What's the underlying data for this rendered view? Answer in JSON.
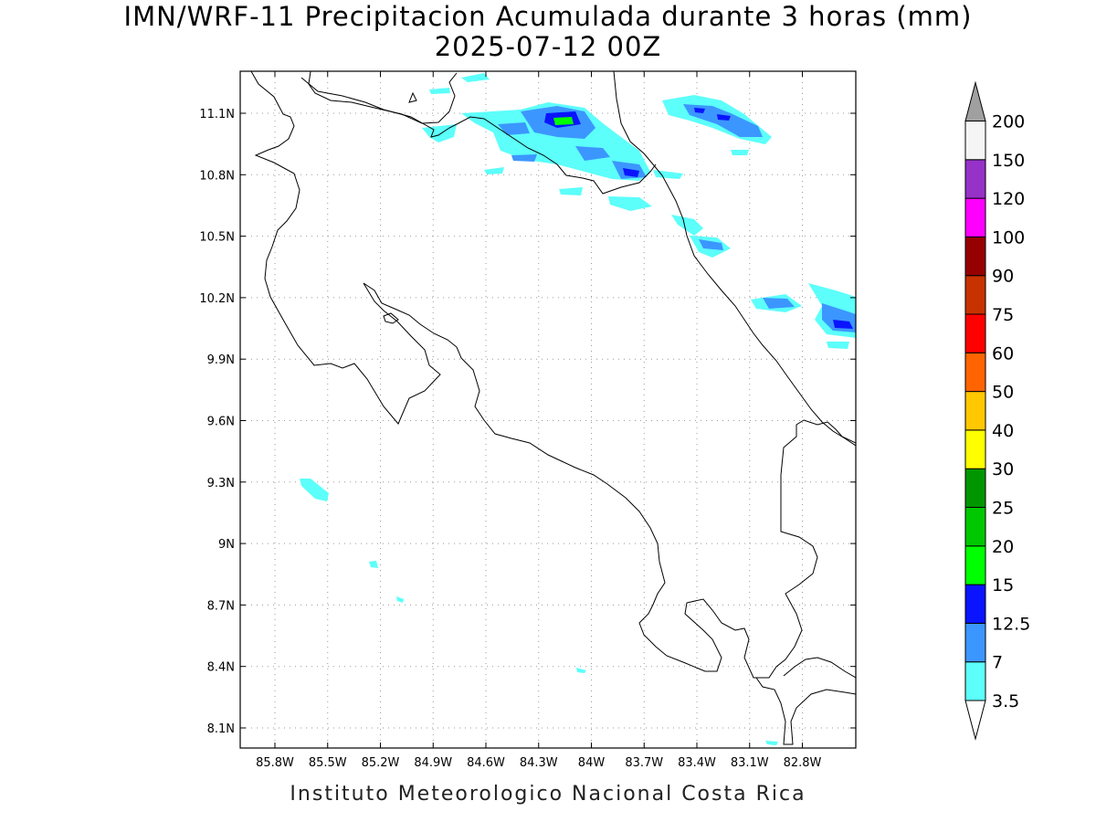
{
  "title_line1": "IMN/WRF-11 Precipitacion Acumulada durante 3 horas (mm)",
  "title_line2": "2025-07-12 00Z",
  "footer": "Instituto Meteorologico Nacional Costa Rica",
  "lon_labels": [
    "85.8W",
    "85.5W",
    "85.2W",
    "84.9W",
    "84.6W",
    "84.3W",
    "84W",
    "83.7W",
    "83.4W",
    "83.1W",
    "82.8W"
  ],
  "lat_labels": [
    "11.1N",
    "10.8N",
    "10.5N",
    "10.2N",
    "9.9N",
    "9.6N",
    "9.3N",
    "9N",
    "8.7N",
    "8.4N",
    "8.1N"
  ],
  "colorbar": [
    {
      "label": "3.5",
      "color": "#5cfffa"
    },
    {
      "label": "7",
      "color": "#3c96ff"
    },
    {
      "label": "12.5",
      "color": "#0a14ff"
    },
    {
      "label": "15",
      "color": "#00ff00"
    },
    {
      "label": "20",
      "color": "#00c800"
    },
    {
      "label": "25",
      "color": "#009600"
    },
    {
      "label": "30",
      "color": "#ffff00"
    },
    {
      "label": "40",
      "color": "#ffc800"
    },
    {
      "label": "50",
      "color": "#ff6400"
    },
    {
      "label": "60",
      "color": "#ff0000"
    },
    {
      "label": "75",
      "color": "#c83200"
    },
    {
      "label": "90",
      "color": "#960000"
    },
    {
      "label": "100",
      "color": "#ff00ff"
    },
    {
      "label": "120",
      "color": "#9632c8"
    },
    {
      "label": "150",
      "color": "#f5f5f5"
    },
    {
      "label": "200",
      "color": "#a0a0a0"
    }
  ]
}
